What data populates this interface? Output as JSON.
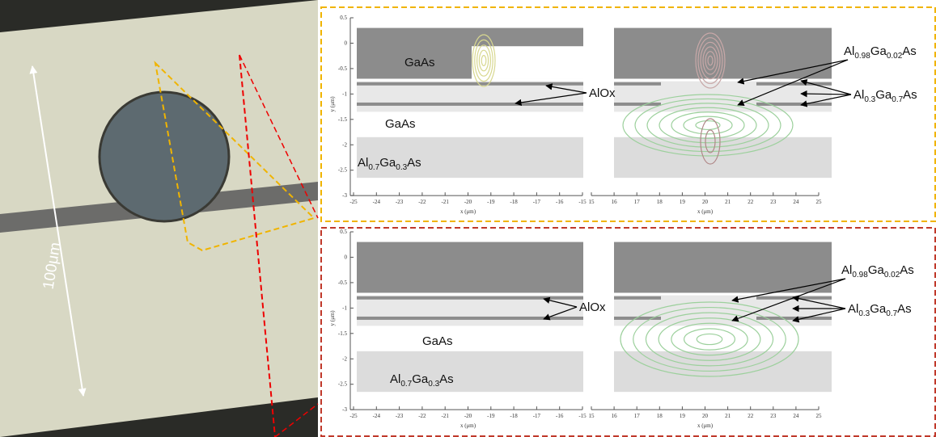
{
  "photo": {
    "scale_label": "100μm"
  },
  "panels": [
    {
      "ylabel": "y (μm)",
      "xlabel_left": "x (μm)",
      "xlabel_right": "x (μm)",
      "yticks": [
        0.5,
        0,
        -0.5,
        -1,
        -1.5,
        -2,
        -2.5,
        -3
      ],
      "xticks_left": [
        -25,
        -24,
        -23,
        -22,
        -21,
        -20,
        -19,
        -18,
        -17,
        -16,
        -15
      ],
      "xticks_right": [
        15,
        16,
        17,
        18,
        19,
        20,
        21,
        22,
        23,
        24,
        25
      ],
      "labels": {
        "gaas_top": "GaAs",
        "alox": "AlOx",
        "gaas": "GaAs",
        "al07": [
          "Al",
          "0.7",
          "Ga",
          "0.3",
          "As"
        ],
        "al098": [
          "Al",
          "0.98",
          "Ga",
          "0.02",
          "As"
        ],
        "al03": [
          "Al",
          "0.3",
          "Ga",
          "0.7",
          "As"
        ]
      }
    },
    {
      "ylabel": "y (μm)",
      "xlabel_left": "x (μm)",
      "xlabel_right": "x (μm)",
      "yticks": [
        0.5,
        0,
        -0.5,
        -1,
        -1.5,
        -2,
        -2.5,
        -3
      ],
      "xticks_left": [
        -25,
        -24,
        -23,
        -22,
        -21,
        -20,
        -19,
        -18,
        -17,
        -16,
        -15
      ],
      "xticks_right": [
        15,
        16,
        17,
        18,
        19,
        20,
        21,
        22,
        23,
        24,
        25
      ],
      "labels": {
        "alox": "AlOx",
        "gaas": "GaAs",
        "al07": [
          "Al",
          "0.7",
          "Ga",
          "0.3",
          "As"
        ],
        "al098": [
          "Al",
          "0.98",
          "Ga",
          "0.02",
          "As"
        ],
        "al03": [
          "Al",
          "0.3",
          "Ga",
          "0.7",
          "As"
        ]
      }
    }
  ]
}
